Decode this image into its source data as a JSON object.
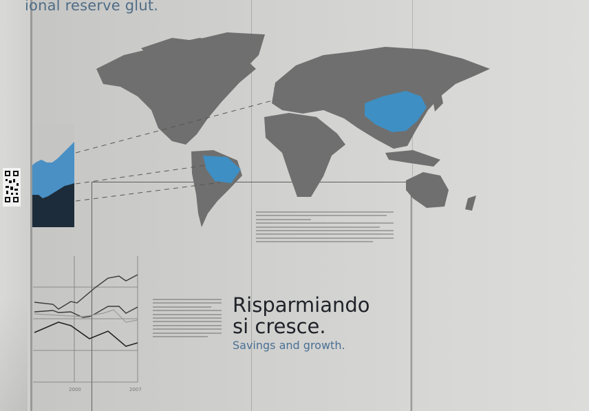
{
  "headline": "ional reserve glut.",
  "title_it_line1": "Risparmiando",
  "title_it_line2": "si cresce.",
  "title_en": "Savings and growth.",
  "chart_axis_labels": [
    "2000",
    "2007"
  ],
  "colors": {
    "map_land": "#6f6f6f",
    "highlight": "#3e8fc4",
    "chart_dark": "#1d2c3a",
    "text_blue": "#4a6f94"
  },
  "icons": [
    "qr-code"
  ]
}
